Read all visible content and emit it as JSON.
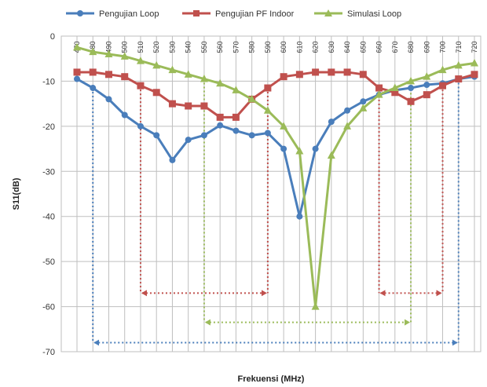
{
  "chart_data": {
    "type": "line",
    "xlabel": "Frekuensi (MHz)",
    "ylabel": "S11(dB)",
    "xlim": [
      470,
      720
    ],
    "ylim": [
      -70,
      0
    ],
    "yticks": [
      0,
      -10,
      -20,
      -30,
      -40,
      -50,
      -60,
      -70
    ],
    "grid": true,
    "legend_position": "top",
    "categories": [
      470,
      480,
      490,
      500,
      510,
      520,
      530,
      540,
      550,
      560,
      570,
      580,
      590,
      600,
      610,
      620,
      630,
      640,
      650,
      660,
      670,
      680,
      690,
      700,
      710,
      720
    ],
    "series": [
      {
        "name": "Pengujian Loop",
        "color": "#4a7ebb",
        "marker": "circle",
        "x": [
          470,
          480,
          490,
          500,
          510,
          520,
          530,
          540,
          550,
          560,
          570,
          580,
          590,
          600,
          610,
          620,
          630,
          640,
          650,
          660,
          670,
          680,
          690,
          700,
          710,
          720
        ],
        "values": [
          -9.5,
          -11.5,
          -14,
          -17.5,
          -20,
          -22,
          -27.5,
          -23,
          -22,
          -19.8,
          -21,
          -22,
          -21.5,
          -25,
          -40,
          -25,
          -19,
          -16.5,
          -14.5,
          -13,
          -12,
          -11.5,
          -10.8,
          -10.5,
          -9.5,
          -9
        ]
      },
      {
        "name": "Pengujian PF Indoor",
        "color": "#c0504d",
        "marker": "square",
        "x": [
          470,
          480,
          490,
          500,
          510,
          520,
          530,
          540,
          550,
          560,
          570,
          580,
          590,
          600,
          610,
          620,
          630,
          640,
          650,
          660,
          670,
          680,
          690,
          700,
          710,
          720
        ],
        "values": [
          -8,
          -8,
          -8.5,
          -9,
          -11,
          -12.5,
          -15,
          -15.5,
          -15.5,
          -18,
          -18,
          -14,
          -11.5,
          -9,
          -8.5,
          -8,
          -8,
          -8,
          -8.5,
          -11.5,
          -12.5,
          -14.5,
          -13,
          -11,
          -9.5,
          -8.5
        ]
      },
      {
        "name": "Simulasi Loop",
        "color": "#9bbb59",
        "marker": "triangle",
        "x": [
          470,
          480,
          490,
          500,
          510,
          520,
          530,
          540,
          550,
          560,
          570,
          580,
          590,
          600,
          610,
          620,
          630,
          640,
          650,
          660,
          670,
          680,
          690,
          700,
          710,
          720
        ],
        "values": [
          -2.5,
          -3.5,
          -4,
          -4.5,
          -5.5,
          -6.5,
          -7.5,
          -8.5,
          -9.5,
          -10.5,
          -12,
          -14,
          -16.5,
          -20,
          -25.5,
          -60,
          -26.5,
          -20,
          -16,
          -13,
          -11.5,
          -10,
          -9,
          -7.5,
          -6.5,
          -6
        ]
      }
    ],
    "bandwidth_markers": [
      {
        "color": "#4a7ebb",
        "x_start": 480,
        "x_end": 710,
        "y": -68
      },
      {
        "color": "#9bbb59",
        "x_start": 550,
        "x_end": 680,
        "y": -63.5
      },
      {
        "color": "#c0504d",
        "x_start": 510,
        "x_end": 590,
        "y": -57
      },
      {
        "color": "#c0504d",
        "x_start": 660,
        "x_end": 700,
        "y": -57
      }
    ]
  }
}
